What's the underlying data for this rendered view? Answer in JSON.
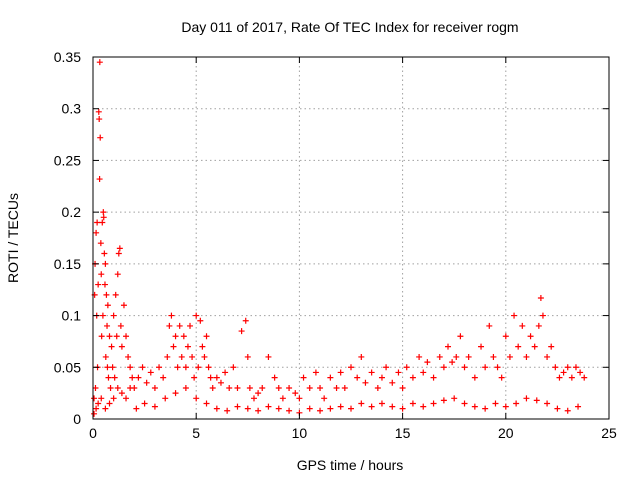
{
  "chart_data": {
    "type": "scatter",
    "title": "Day 011 of 2017, Rate Of TEC Index for receiver rogm",
    "xlabel": "GPS time / hours",
    "ylabel": "ROTI / TECUs",
    "xlim": [
      0,
      25
    ],
    "ylim": [
      0,
      0.35
    ],
    "x_ticks": [
      0,
      5,
      10,
      15,
      20,
      25
    ],
    "x_tick_labels": [
      "0",
      "5",
      "10",
      "15",
      "20",
      "25"
    ],
    "y_ticks": [
      0,
      0.05,
      0.1,
      0.15,
      0.2,
      0.25,
      0.3,
      0.35
    ],
    "y_tick_labels": [
      "0",
      "0.05",
      "0.1",
      "0.15",
      "0.2",
      "0.25",
      "0.3",
      "0.35"
    ],
    "grid": true,
    "marker": "+",
    "color": "#ff0000",
    "series": [
      {
        "name": "ROTI",
        "points": [
          [
            0.05,
            0.02
          ],
          [
            0.08,
            0.12
          ],
          [
            0.1,
            0.15
          ],
          [
            0.12,
            0.03
          ],
          [
            0.15,
            0.18
          ],
          [
            0.18,
            0.1
          ],
          [
            0.2,
            0.19
          ],
          [
            0.22,
            0.05
          ],
          [
            0.25,
            0.13
          ],
          [
            0.28,
            0.297
          ],
          [
            0.3,
            0.29
          ],
          [
            0.32,
            0.232
          ],
          [
            0.33,
            0.345
          ],
          [
            0.35,
            0.272
          ],
          [
            0.38,
            0.17
          ],
          [
            0.4,
            0.14
          ],
          [
            0.42,
            0.08
          ],
          [
            0.45,
            0.19
          ],
          [
            0.48,
            0.1
          ],
          [
            0.5,
            0.2
          ],
          [
            0.52,
            0.195
          ],
          [
            0.55,
            0.16
          ],
          [
            0.58,
            0.13
          ],
          [
            0.6,
            0.15
          ],
          [
            0.62,
            0.06
          ],
          [
            0.65,
            0.12
          ],
          [
            0.68,
            0.09
          ],
          [
            0.7,
            0.05
          ],
          [
            0.72,
            0.11
          ],
          [
            0.75,
            0.04
          ],
          [
            0.8,
            0.08
          ],
          [
            0.85,
            0.03
          ],
          [
            0.9,
            0.07
          ],
          [
            0.95,
            0.05
          ],
          [
            1.0,
            0.1
          ],
          [
            1.05,
            0.04
          ],
          [
            1.1,
            0.12
          ],
          [
            1.15,
            0.08
          ],
          [
            1.2,
            0.14
          ],
          [
            1.25,
            0.16
          ],
          [
            1.3,
            0.165
          ],
          [
            1.35,
            0.09
          ],
          [
            1.4,
            0.07
          ],
          [
            1.5,
            0.11
          ],
          [
            1.6,
            0.08
          ],
          [
            1.7,
            0.06
          ],
          [
            1.8,
            0.05
          ],
          [
            1.9,
            0.04
          ],
          [
            2.0,
            0.03
          ],
          [
            0.05,
            0.005
          ],
          [
            0.15,
            0.01
          ],
          [
            0.25,
            0.015
          ],
          [
            0.4,
            0.02
          ],
          [
            0.6,
            0.01
          ],
          [
            0.8,
            0.015
          ],
          [
            1.0,
            0.02
          ],
          [
            1.2,
            0.03
          ],
          [
            1.4,
            0.025
          ],
          [
            1.6,
            0.02
          ],
          [
            1.8,
            0.03
          ],
          [
            2.2,
            0.04
          ],
          [
            2.4,
            0.05
          ],
          [
            2.6,
            0.035
          ],
          [
            2.8,
            0.045
          ],
          [
            3.0,
            0.03
          ],
          [
            3.2,
            0.05
          ],
          [
            3.4,
            0.04
          ],
          [
            3.6,
            0.06
          ],
          [
            3.7,
            0.09
          ],
          [
            3.8,
            0.1
          ],
          [
            3.9,
            0.07
          ],
          [
            4.0,
            0.08
          ],
          [
            4.1,
            0.05
          ],
          [
            4.2,
            0.09
          ],
          [
            4.3,
            0.06
          ],
          [
            4.4,
            0.08
          ],
          [
            4.5,
            0.05
          ],
          [
            4.6,
            0.07
          ],
          [
            4.7,
            0.09
          ],
          [
            4.8,
            0.06
          ],
          [
            4.9,
            0.04
          ],
          [
            5.0,
            0.1
          ],
          [
            5.1,
            0.05
          ],
          [
            5.2,
            0.095
          ],
          [
            5.3,
            0.07
          ],
          [
            5.4,
            0.06
          ],
          [
            5.5,
            0.08
          ],
          [
            5.6,
            0.05
          ],
          [
            5.7,
            0.04
          ],
          [
            5.8,
            0.03
          ],
          [
            6.0,
            0.04
          ],
          [
            6.2,
            0.035
          ],
          [
            6.4,
            0.045
          ],
          [
            6.6,
            0.03
          ],
          [
            6.8,
            0.05
          ],
          [
            7.0,
            0.03
          ],
          [
            7.2,
            0.085
          ],
          [
            7.4,
            0.095
          ],
          [
            7.5,
            0.06
          ],
          [
            7.6,
            0.03
          ],
          [
            7.8,
            0.02
          ],
          [
            8.0,
            0.025
          ],
          [
            8.2,
            0.03
          ],
          [
            8.5,
            0.06
          ],
          [
            8.8,
            0.04
          ],
          [
            9.0,
            0.03
          ],
          [
            9.2,
            0.02
          ],
          [
            9.5,
            0.03
          ],
          [
            9.8,
            0.025
          ],
          [
            10.0,
            0.02
          ],
          [
            10.2,
            0.04
          ],
          [
            10.5,
            0.03
          ],
          [
            10.8,
            0.045
          ],
          [
            11.0,
            0.03
          ],
          [
            11.2,
            0.02
          ],
          [
            11.5,
            0.04
          ],
          [
            11.8,
            0.03
          ],
          [
            12.0,
            0.045
          ],
          [
            12.2,
            0.03
          ],
          [
            12.5,
            0.05
          ],
          [
            12.8,
            0.04
          ],
          [
            13.0,
            0.06
          ],
          [
            13.2,
            0.035
          ],
          [
            13.5,
            0.045
          ],
          [
            13.8,
            0.03
          ],
          [
            14.0,
            0.04
          ],
          [
            14.2,
            0.05
          ],
          [
            14.5,
            0.035
          ],
          [
            14.8,
            0.045
          ],
          [
            15.0,
            0.03
          ],
          [
            15.2,
            0.05
          ],
          [
            15.5,
            0.04
          ],
          [
            15.8,
            0.06
          ],
          [
            16.0,
            0.045
          ],
          [
            16.2,
            0.055
          ],
          [
            16.5,
            0.04
          ],
          [
            16.8,
            0.06
          ],
          [
            17.0,
            0.05
          ],
          [
            17.2,
            0.07
          ],
          [
            17.4,
            0.055
          ],
          [
            17.6,
            0.06
          ],
          [
            17.8,
            0.08
          ],
          [
            18.0,
            0.05
          ],
          [
            18.2,
            0.06
          ],
          [
            18.5,
            0.04
          ],
          [
            18.8,
            0.07
          ],
          [
            19.0,
            0.05
          ],
          [
            19.2,
            0.09
          ],
          [
            19.4,
            0.06
          ],
          [
            19.6,
            0.05
          ],
          [
            19.8,
            0.04
          ],
          [
            20.0,
            0.08
          ],
          [
            20.2,
            0.06
          ],
          [
            20.4,
            0.1
          ],
          [
            20.6,
            0.07
          ],
          [
            20.8,
            0.09
          ],
          [
            21.0,
            0.06
          ],
          [
            21.2,
            0.08
          ],
          [
            21.4,
            0.07
          ],
          [
            21.6,
            0.09
          ],
          [
            21.7,
            0.117
          ],
          [
            21.8,
            0.1
          ],
          [
            22.0,
            0.06
          ],
          [
            22.2,
            0.07
          ],
          [
            22.4,
            0.05
          ],
          [
            22.6,
            0.04
          ],
          [
            22.8,
            0.045
          ],
          [
            23.0,
            0.05
          ],
          [
            23.2,
            0.04
          ],
          [
            23.4,
            0.05
          ],
          [
            23.6,
            0.045
          ],
          [
            23.8,
            0.04
          ],
          [
            2.1,
            0.01
          ],
          [
            2.5,
            0.015
          ],
          [
            3.0,
            0.012
          ],
          [
            3.5,
            0.02
          ],
          [
            4.0,
            0.025
          ],
          [
            4.5,
            0.03
          ],
          [
            5.0,
            0.02
          ],
          [
            5.5,
            0.015
          ],
          [
            6.0,
            0.01
          ],
          [
            6.5,
            0.008
          ],
          [
            7.0,
            0.012
          ],
          [
            7.5,
            0.01
          ],
          [
            8.0,
            0.008
          ],
          [
            8.5,
            0.012
          ],
          [
            9.0,
            0.01
          ],
          [
            9.5,
            0.008
          ],
          [
            10.0,
            0.006
          ],
          [
            10.5,
            0.01
          ],
          [
            11.0,
            0.008
          ],
          [
            11.5,
            0.01
          ],
          [
            12.0,
            0.012
          ],
          [
            12.5,
            0.01
          ],
          [
            13.0,
            0.015
          ],
          [
            13.5,
            0.012
          ],
          [
            14.0,
            0.015
          ],
          [
            14.5,
            0.012
          ],
          [
            15.0,
            0.01
          ],
          [
            15.5,
            0.015
          ],
          [
            16.0,
            0.012
          ],
          [
            16.5,
            0.015
          ],
          [
            17.0,
            0.018
          ],
          [
            17.5,
            0.02
          ],
          [
            18.0,
            0.015
          ],
          [
            18.5,
            0.012
          ],
          [
            19.0,
            0.01
          ],
          [
            19.5,
            0.015
          ],
          [
            20.0,
            0.012
          ],
          [
            20.5,
            0.015
          ],
          [
            21.0,
            0.02
          ],
          [
            21.5,
            0.018
          ],
          [
            22.0,
            0.015
          ],
          [
            22.5,
            0.01
          ],
          [
            23.0,
            0.008
          ],
          [
            23.5,
            0.012
          ]
        ]
      }
    ]
  }
}
